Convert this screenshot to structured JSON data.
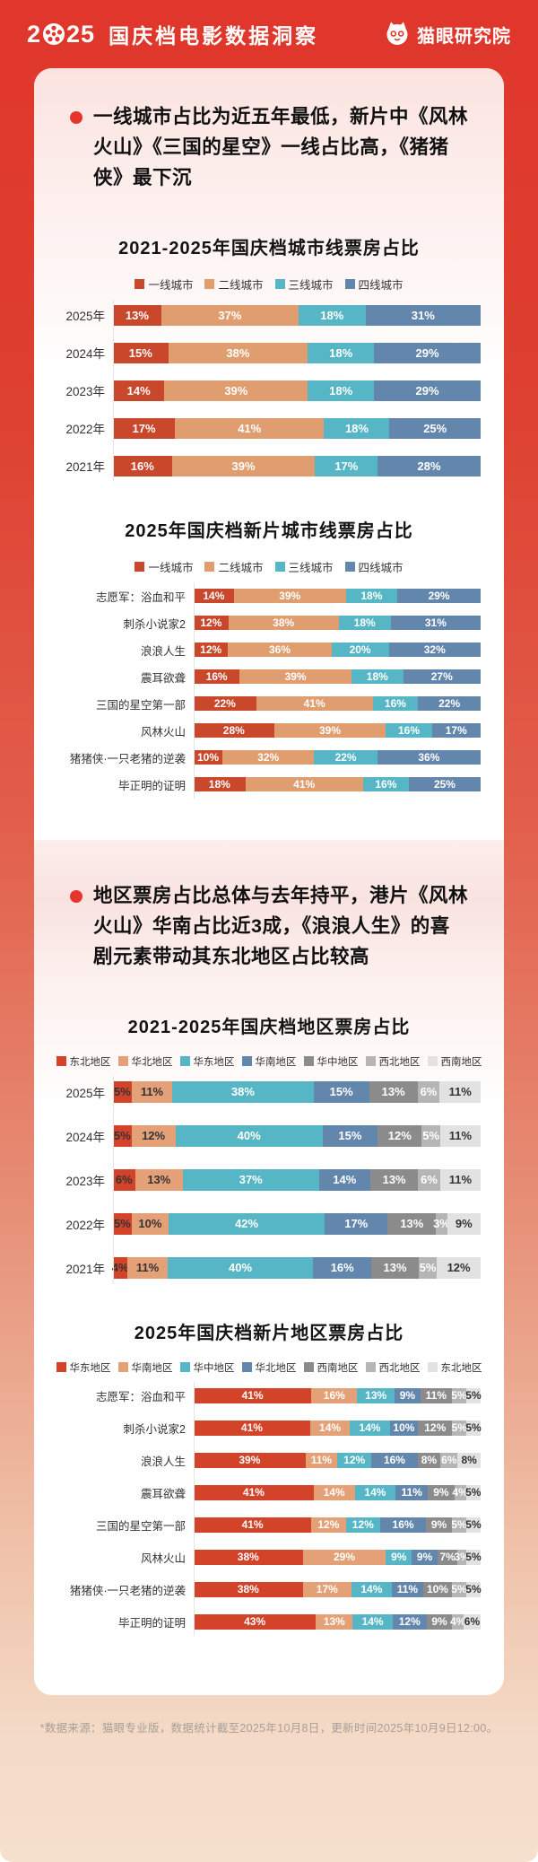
{
  "header": {
    "year_prefix": "2",
    "year_suffix": "25",
    "year_full": "2025",
    "title": "国庆档电影数据洞察",
    "brand": "猫眼研究院",
    "background_red": "#e0362b"
  },
  "sections": [
    {
      "bullet": "一线城市占比为近五年最低，新片中《风林火山》《三国的星空》一线占比高，《猪猪侠》最下沉"
    },
    {
      "bullet": "地区票房占比总体与去年持平，港片《风林火山》华南占比近3成，《浪浪人生》的喜剧元素带动其东北地区占比较高"
    }
  ],
  "footer": {
    "note": "*数据来源：猫眼专业版，数据统计截至2025年10月8日，更新时间2025年10月9日12:00。"
  },
  "colors": {
    "accent_red": "#e8352b",
    "bullet_text": "#101010",
    "card_pink_top": "#fbe3e0"
  },
  "chart_data": [
    {
      "type": "bar",
      "subtype": "horizontal-stacked-percent",
      "title": "2021-2025年国庆档城市线票房占比",
      "xlim": [
        0,
        100
      ],
      "unit": "%",
      "legend_position": "top",
      "legend": [
        "一线城市",
        "二线城市",
        "三线城市",
        "四线城市"
      ],
      "colors": [
        "#c9472a",
        "#df9d70",
        "#57b6c6",
        "#6286ac"
      ],
      "label_colors": [
        "#ffffff",
        "#ffffff",
        "#ffffff",
        "#ffffff"
      ],
      "categories": [
        "2025年",
        "2024年",
        "2023年",
        "2022年",
        "2021年"
      ],
      "series": [
        {
          "name": "一线城市",
          "values": [
            13,
            15,
            14,
            17,
            16
          ]
        },
        {
          "name": "二线城市",
          "values": [
            37,
            38,
            39,
            41,
            39
          ]
        },
        {
          "name": "三线城市",
          "values": [
            18,
            18,
            18,
            18,
            17
          ]
        },
        {
          "name": "四线城市",
          "values": [
            31,
            29,
            29,
            25,
            28
          ]
        }
      ]
    },
    {
      "type": "bar",
      "subtype": "horizontal-stacked-percent",
      "title": "2025年国庆档新片城市线票房占比",
      "xlim": [
        0,
        100
      ],
      "unit": "%",
      "legend_position": "top",
      "legend": [
        "一线城市",
        "二线城市",
        "三线城市",
        "四线城市"
      ],
      "colors": [
        "#c9472a",
        "#df9d70",
        "#57b6c6",
        "#6286ac"
      ],
      "label_colors": [
        "#ffffff",
        "#ffffff",
        "#ffffff",
        "#ffffff"
      ],
      "categories": [
        "志愿军：浴血和平",
        "刺杀小说家2",
        "浪浪人生",
        "震耳欲聋",
        "三国的星空第一部",
        "风林火山",
        "猪猪侠·一只老猪的逆袭",
        "毕正明的证明"
      ],
      "series": [
        {
          "name": "一线城市",
          "values": [
            14,
            12,
            12,
            16,
            22,
            28,
            10,
            18
          ]
        },
        {
          "name": "二线城市",
          "values": [
            39,
            38,
            36,
            39,
            41,
            39,
            32,
            41
          ]
        },
        {
          "name": "三线城市",
          "values": [
            18,
            18,
            20,
            18,
            16,
            16,
            22,
            16
          ]
        },
        {
          "name": "四线城市",
          "values": [
            29,
            31,
            32,
            27,
            22,
            17,
            36,
            25
          ]
        }
      ]
    },
    {
      "type": "bar",
      "subtype": "horizontal-stacked-percent",
      "title": "2021-2025年国庆档地区票房占比",
      "xlim": [
        0,
        100
      ],
      "unit": "%",
      "legend_position": "top",
      "legend": [
        "东北地区",
        "华北地区",
        "华东地区",
        "华南地区",
        "华中地区",
        "西北地区",
        "西南地区"
      ],
      "colors": [
        "#d2432a",
        "#e4a077",
        "#57b6c6",
        "#6286ac",
        "#8b8b8b",
        "#b5b5b5",
        "#e2e2e2"
      ],
      "label_colors": [
        "#333333",
        "#333333",
        "#ffffff",
        "#ffffff",
        "#ffffff",
        "#ffffff",
        "#333333"
      ],
      "categories": [
        "2025年",
        "2024年",
        "2023年",
        "2022年",
        "2021年"
      ],
      "series": [
        {
          "name": "东北地区",
          "values": [
            5,
            5,
            6,
            5,
            4
          ]
        },
        {
          "name": "华北地区",
          "values": [
            11,
            12,
            13,
            10,
            11
          ]
        },
        {
          "name": "华东地区",
          "values": [
            38,
            40,
            37,
            42,
            40
          ]
        },
        {
          "name": "华南地区",
          "values": [
            15,
            15,
            14,
            17,
            16
          ]
        },
        {
          "name": "华中地区",
          "values": [
            13,
            12,
            13,
            13,
            13
          ]
        },
        {
          "name": "西北地区",
          "values": [
            6,
            5,
            6,
            3,
            5
          ]
        },
        {
          "name": "西南地区",
          "values": [
            11,
            11,
            11,
            9,
            12
          ]
        }
      ]
    },
    {
      "type": "bar",
      "subtype": "horizontal-stacked-percent",
      "title": "2025年国庆档新片地区票房占比",
      "xlim": [
        0,
        100
      ],
      "unit": "%",
      "legend_position": "top",
      "legend": [
        "华东地区",
        "华南地区",
        "华中地区",
        "华北地区",
        "西南地区",
        "西北地区",
        "东北地区"
      ],
      "colors": [
        "#d2432a",
        "#e4a077",
        "#57b6c6",
        "#6286ac",
        "#8b8b8b",
        "#b5b5b5",
        "#e2e2e2"
      ],
      "label_colors": [
        "#ffffff",
        "#ffffff",
        "#ffffff",
        "#ffffff",
        "#ffffff",
        "#ffffff",
        "#333333"
      ],
      "categories": [
        "志愿军：浴血和平",
        "刺杀小说家2",
        "浪浪人生",
        "震耳欲聋",
        "三国的星空第一部",
        "风林火山",
        "猪猪侠·一只老猪的逆袭",
        "毕正明的证明"
      ],
      "series": [
        {
          "name": "华东地区",
          "values": [
            41,
            41,
            39,
            41,
            41,
            38,
            38,
            43
          ]
        },
        {
          "name": "华南地区",
          "values": [
            16,
            14,
            11,
            14,
            12,
            29,
            17,
            13
          ]
        },
        {
          "name": "华中地区",
          "values": [
            13,
            14,
            12,
            14,
            12,
            9,
            14,
            14
          ]
        },
        {
          "name": "华北地区",
          "values": [
            9,
            10,
            16,
            11,
            16,
            9,
            11,
            12
          ]
        },
        {
          "name": "西南地区",
          "values": [
            11,
            12,
            8,
            9,
            9,
            7,
            10,
            9
          ]
        },
        {
          "name": "西北地区",
          "values": [
            5,
            5,
            6,
            4,
            5,
            3,
            5,
            4
          ]
        },
        {
          "name": "东北地区",
          "values": [
            5,
            5,
            8,
            5,
            5,
            5,
            5,
            6
          ]
        }
      ]
    }
  ]
}
